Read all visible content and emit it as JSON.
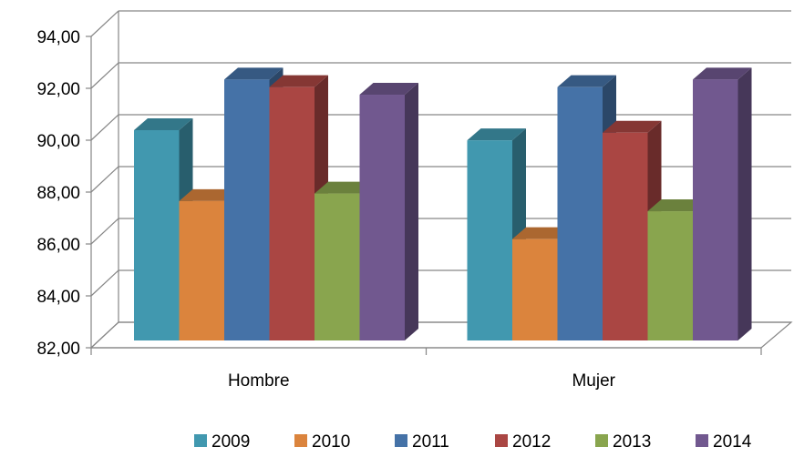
{
  "chart_data": {
    "type": "bar",
    "categories": [
      "Hombre",
      "Mujer"
    ],
    "series": [
      {
        "name": "2009",
        "values": [
          90.3,
          89.9
        ],
        "color": "#4198AF"
      },
      {
        "name": "2010",
        "values": [
          87.5,
          86.0
        ],
        "color": "#DB843D"
      },
      {
        "name": "2011",
        "values": [
          92.3,
          92.0
        ],
        "color": "#4572A7"
      },
      {
        "name": "2012",
        "values": [
          92.0,
          90.2
        ],
        "color": "#AA4643"
      },
      {
        "name": "2013",
        "values": [
          87.8,
          87.1
        ],
        "color": "#89A54E"
      },
      {
        "name": "2014",
        "values": [
          91.7,
          92.3
        ],
        "color": "#71588F"
      }
    ],
    "y_ticks": [
      "82,00",
      "84,00",
      "86,00",
      "88,00",
      "90,00",
      "92,00",
      "94,00"
    ],
    "ylim": [
      82,
      94
    ],
    "grid": true,
    "legend_position": "bottom",
    "style": "3d-clustered-column"
  }
}
